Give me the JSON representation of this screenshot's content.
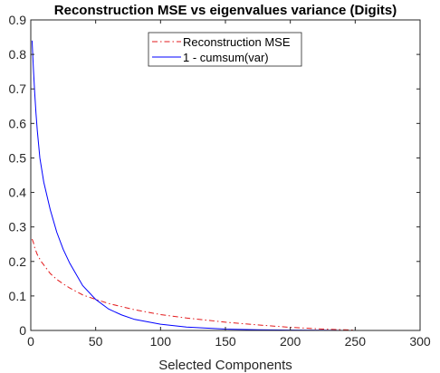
{
  "chart_data": {
    "type": "line",
    "title": "Reconstruction MSE vs eigenvalues variance (Digits)",
    "xlabel": "Selected Components",
    "ylabel": "",
    "xlim": [
      0,
      300
    ],
    "ylim": [
      0,
      0.9
    ],
    "x_ticks": [
      "0",
      "50",
      "100",
      "150",
      "200",
      "250",
      "300"
    ],
    "y_ticks": [
      "0",
      "0.1",
      "0.2",
      "0.3",
      "0.4",
      "0.5",
      "0.6",
      "0.7",
      "0.8",
      "0.9"
    ],
    "grid": false,
    "legend_position": "top-center",
    "series": [
      {
        "name": "Reconstruction MSE",
        "color": "#e31a1c",
        "style": "dash-dot",
        "x": [
          1,
          2,
          3,
          5,
          8,
          10,
          15,
          20,
          25,
          30,
          40,
          50,
          60,
          80,
          100,
          120,
          150,
          175,
          200,
          225,
          250
        ],
        "y": [
          0.265,
          0.255,
          0.24,
          0.22,
          0.2,
          0.19,
          0.165,
          0.148,
          0.135,
          0.123,
          0.103,
          0.09,
          0.078,
          0.06,
          0.046,
          0.036,
          0.024,
          0.016,
          0.009,
          0.004,
          0.001
        ]
      },
      {
        "name": "1 - cumsum(var)",
        "color": "#0000ff",
        "style": "solid",
        "x": [
          1,
          2,
          3,
          4,
          5,
          7,
          10,
          15,
          20,
          25,
          30,
          40,
          50,
          60,
          70,
          80,
          100,
          120,
          150,
          175,
          200,
          225,
          250
        ],
        "y": [
          0.84,
          0.76,
          0.69,
          0.63,
          0.58,
          0.5,
          0.43,
          0.35,
          0.285,
          0.235,
          0.195,
          0.13,
          0.09,
          0.062,
          0.045,
          0.032,
          0.018,
          0.01,
          0.004,
          0.002,
          0.001,
          0.0005,
          0.0
        ]
      }
    ]
  }
}
